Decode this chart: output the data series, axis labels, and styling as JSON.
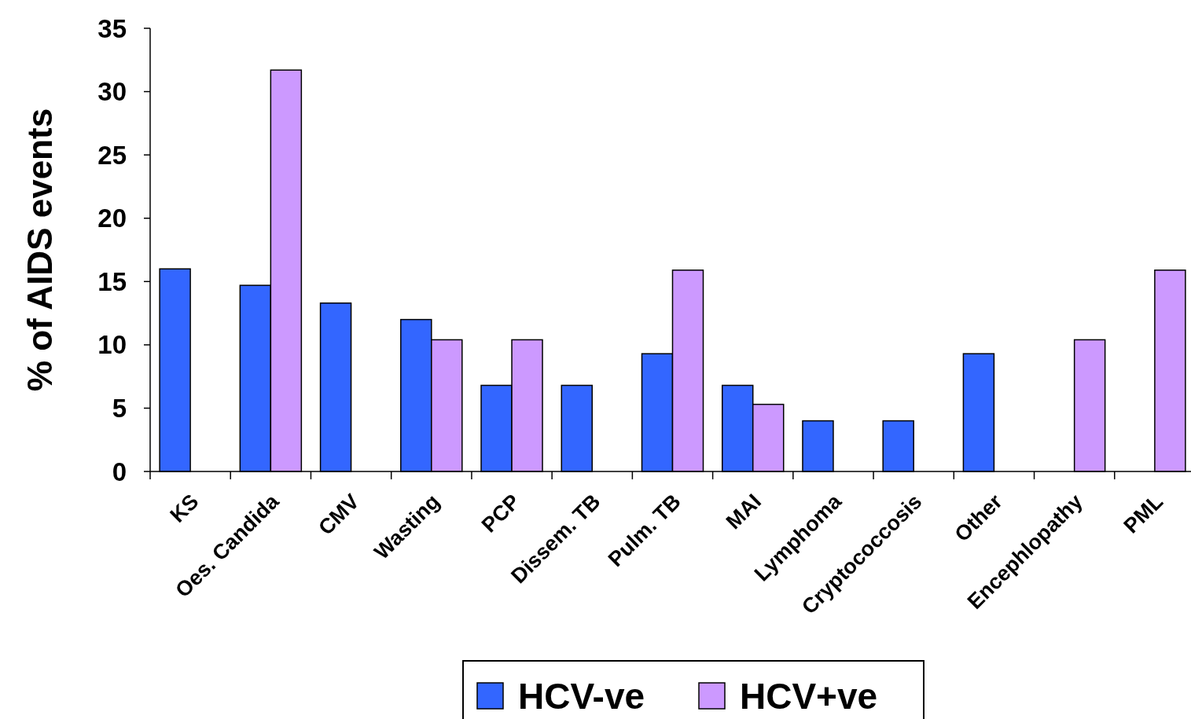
{
  "chart_data": {
    "type": "bar",
    "ylabel": "% of AIDS events",
    "categories": [
      "KS",
      "Oes. Candida",
      "CMV",
      "Wasting",
      "PCP",
      "Dissem. TB",
      "Pulm. TB",
      "MAI",
      "Lymphoma",
      "Cryptococcosis",
      "Other",
      "Encephlopathy",
      "PML"
    ],
    "series": [
      {
        "name": "HCV-ve",
        "color": "#3366ff",
        "values": [
          16.0,
          14.7,
          13.3,
          12.0,
          6.8,
          6.8,
          9.3,
          6.8,
          4.0,
          4.0,
          9.3,
          null,
          null
        ]
      },
      {
        "name": "HCV+ve",
        "color": "#cc99ff",
        "values": [
          null,
          31.7,
          null,
          10.4,
          10.4,
          null,
          15.9,
          5.3,
          null,
          null,
          null,
          10.4,
          15.9
        ]
      }
    ],
    "ylim": [
      0,
      35
    ],
    "yticks": [
      0,
      5,
      10,
      15,
      20,
      25,
      30,
      35
    ],
    "grid": false,
    "legend": "bottom"
  }
}
